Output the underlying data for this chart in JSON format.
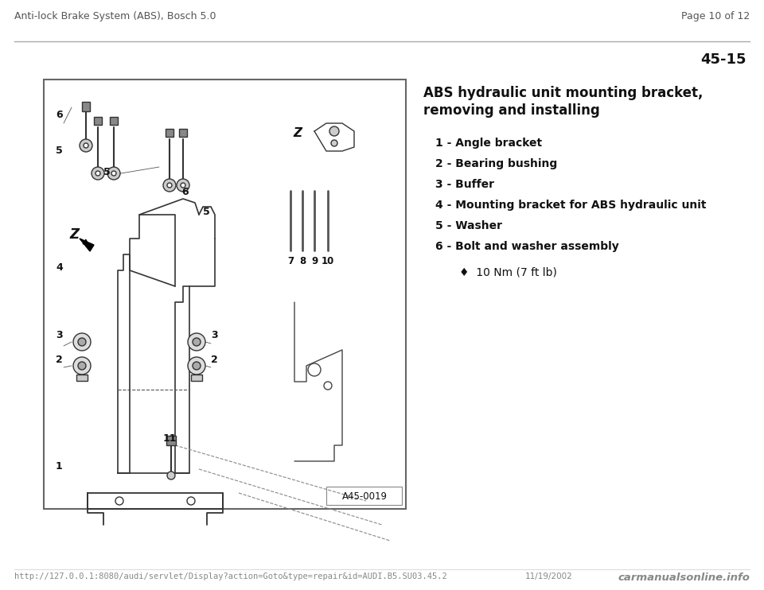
{
  "bg_color": "#ffffff",
  "header_left": "Anti-lock Brake System (ABS), Bosch 5.0",
  "header_right": "Page 10 of 12",
  "section_number": "45-15",
  "title_line1": "ABS hydraulic unit mounting bracket,",
  "title_line2": "removing and installing",
  "items": [
    "1 - Angle bracket",
    "2 - Bearing bushing",
    "3 - Buffer",
    "4 - Mounting bracket for ABS hydraulic unit",
    "5 - Washer",
    "6 - Bolt and washer assembly"
  ],
  "sub_item": "♦  10 Nm (7 ft lb)",
  "figure_label": "A45-0019",
  "footer_url": "http://127.0.0.1:8080/audi/servlet/Display?action=Goto&type=repair&id=AUDI.B5.SU03.45.2",
  "footer_date": "11/19/2002",
  "footer_right": "carmanualsonline.info",
  "header_line_color": "#aaaaaa",
  "text_color": "#111111",
  "diagram_line_color": "#333333",
  "title_fontsize": 12,
  "item_fontsize": 10,
  "header_fontsize": 9,
  "footer_fontsize": 7.5
}
